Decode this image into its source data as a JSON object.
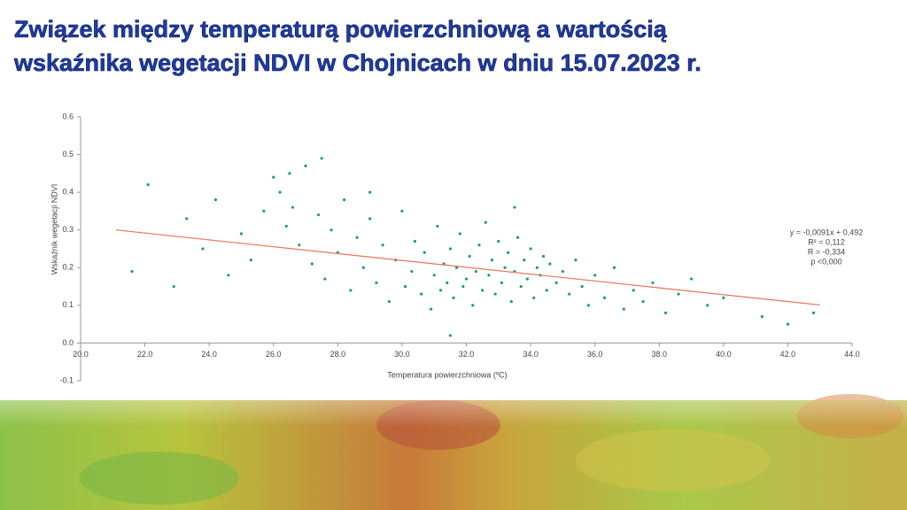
{
  "chart_data": {
    "type": "scatter",
    "title": [
      "Związek między temperaturą powierzchniową a wartością",
      "wskaźnika wegetacji NDVI w Chojnicach w dniu 15.07.2023 r."
    ],
    "x_label": "Temperatura powierzchniowa (ºC)",
    "y_label": "Wskaźnik wegetacji NDVI",
    "color": "#1f9e6c",
    "x": [
      21.6,
      22.1,
      22.9,
      23.3,
      23.8,
      24.2,
      24.6,
      25.0,
      25.3,
      25.7,
      26.0,
      26.2,
      26.4,
      26.6,
      26.8,
      27.0,
      27.2,
      27.4,
      27.6,
      27.8,
      28.0,
      28.2,
      28.4,
      28.6,
      28.8,
      29.0,
      29.2,
      29.4,
      29.6,
      29.8,
      30.0,
      30.1,
      30.3,
      30.4,
      30.6,
      30.7,
      30.9,
      31.0,
      31.1,
      31.2,
      31.3,
      31.4,
      31.5,
      31.6,
      31.7,
      31.8,
      31.9,
      32.0,
      32.1,
      32.2,
      32.3,
      32.4,
      32.5,
      32.6,
      32.7,
      32.8,
      32.9,
      33.0,
      33.1,
      33.2,
      33.3,
      33.4,
      33.5,
      33.6,
      33.7,
      33.8,
      33.9,
      34.0,
      34.1,
      34.2,
      34.3,
      34.4,
      34.5,
      34.6,
      34.8,
      35.0,
      35.2,
      35.4,
      35.6,
      35.8,
      36.0,
      36.3,
      36.6,
      36.9,
      37.2,
      37.5,
      37.8,
      38.2,
      38.6,
      39.0,
      39.5,
      40.0,
      41.2,
      42.0,
      42.8,
      26.5,
      27.5,
      29.0,
      31.5,
      33.5
    ],
    "values": [
      0.19,
      0.42,
      0.15,
      0.33,
      0.25,
      0.38,
      0.18,
      0.29,
      0.22,
      0.35,
      0.44,
      0.4,
      0.31,
      0.36,
      0.26,
      0.47,
      0.21,
      0.34,
      0.17,
      0.3,
      0.24,
      0.38,
      0.14,
      0.28,
      0.2,
      0.33,
      0.16,
      0.26,
      0.11,
      0.22,
      0.35,
      0.15,
      0.19,
      0.27,
      0.13,
      0.24,
      0.09,
      0.18,
      0.31,
      0.14,
      0.21,
      0.16,
      0.25,
      0.12,
      0.2,
      0.29,
      0.15,
      0.17,
      0.23,
      0.1,
      0.19,
      0.26,
      0.14,
      0.32,
      0.18,
      0.22,
      0.13,
      0.27,
      0.16,
      0.2,
      0.24,
      0.11,
      0.19,
      0.28,
      0.15,
      0.22,
      0.17,
      0.25,
      0.12,
      0.2,
      0.18,
      0.23,
      0.14,
      0.21,
      0.16,
      0.19,
      0.13,
      0.22,
      0.15,
      0.1,
      0.18,
      0.12,
      0.2,
      0.09,
      0.14,
      0.11,
      0.16,
      0.08,
      0.13,
      0.17,
      0.1,
      0.12,
      0.07,
      0.05,
      0.08,
      0.45,
      0.49,
      0.4,
      0.02,
      0.36
    ],
    "trendline": {
      "color": "#e8735a",
      "x": [
        21.1,
        43
      ],
      "values": [
        0.3,
        0.101
      ]
    },
    "annotations": [
      "y = -0,0091x + 0,492",
      "R² = 0,112",
      "R = -0,334",
      "p <0,000"
    ],
    "xlim": [
      20,
      44
    ],
    "xticks": [
      {
        "value": 20,
        "label": "20.0"
      },
      {
        "value": 22,
        "label": "22.0"
      },
      {
        "value": 24,
        "label": "24.0"
      },
      {
        "value": 26,
        "label": "26.0"
      },
      {
        "value": 28,
        "label": "28.0"
      },
      {
        "value": 30,
        "label": "30.0"
      },
      {
        "value": 32,
        "label": "32.0"
      },
      {
        "value": 34,
        "label": "34.0"
      },
      {
        "value": 36,
        "label": "36.0"
      },
      {
        "value": 38,
        "label": "38.0"
      },
      {
        "value": 40,
        "label": "40.0"
      },
      {
        "value": 42,
        "label": "42.0"
      },
      {
        "value": 44,
        "label": "44.0"
      }
    ],
    "ylim": [
      -0.1,
      0.6
    ],
    "yticks": [
      -0.1,
      {
        "value": 0,
        "label": "0.0"
      },
      0.1,
      0.2,
      0.3,
      0.4,
      0.5,
      0.6
    ],
    "grid": false
  }
}
